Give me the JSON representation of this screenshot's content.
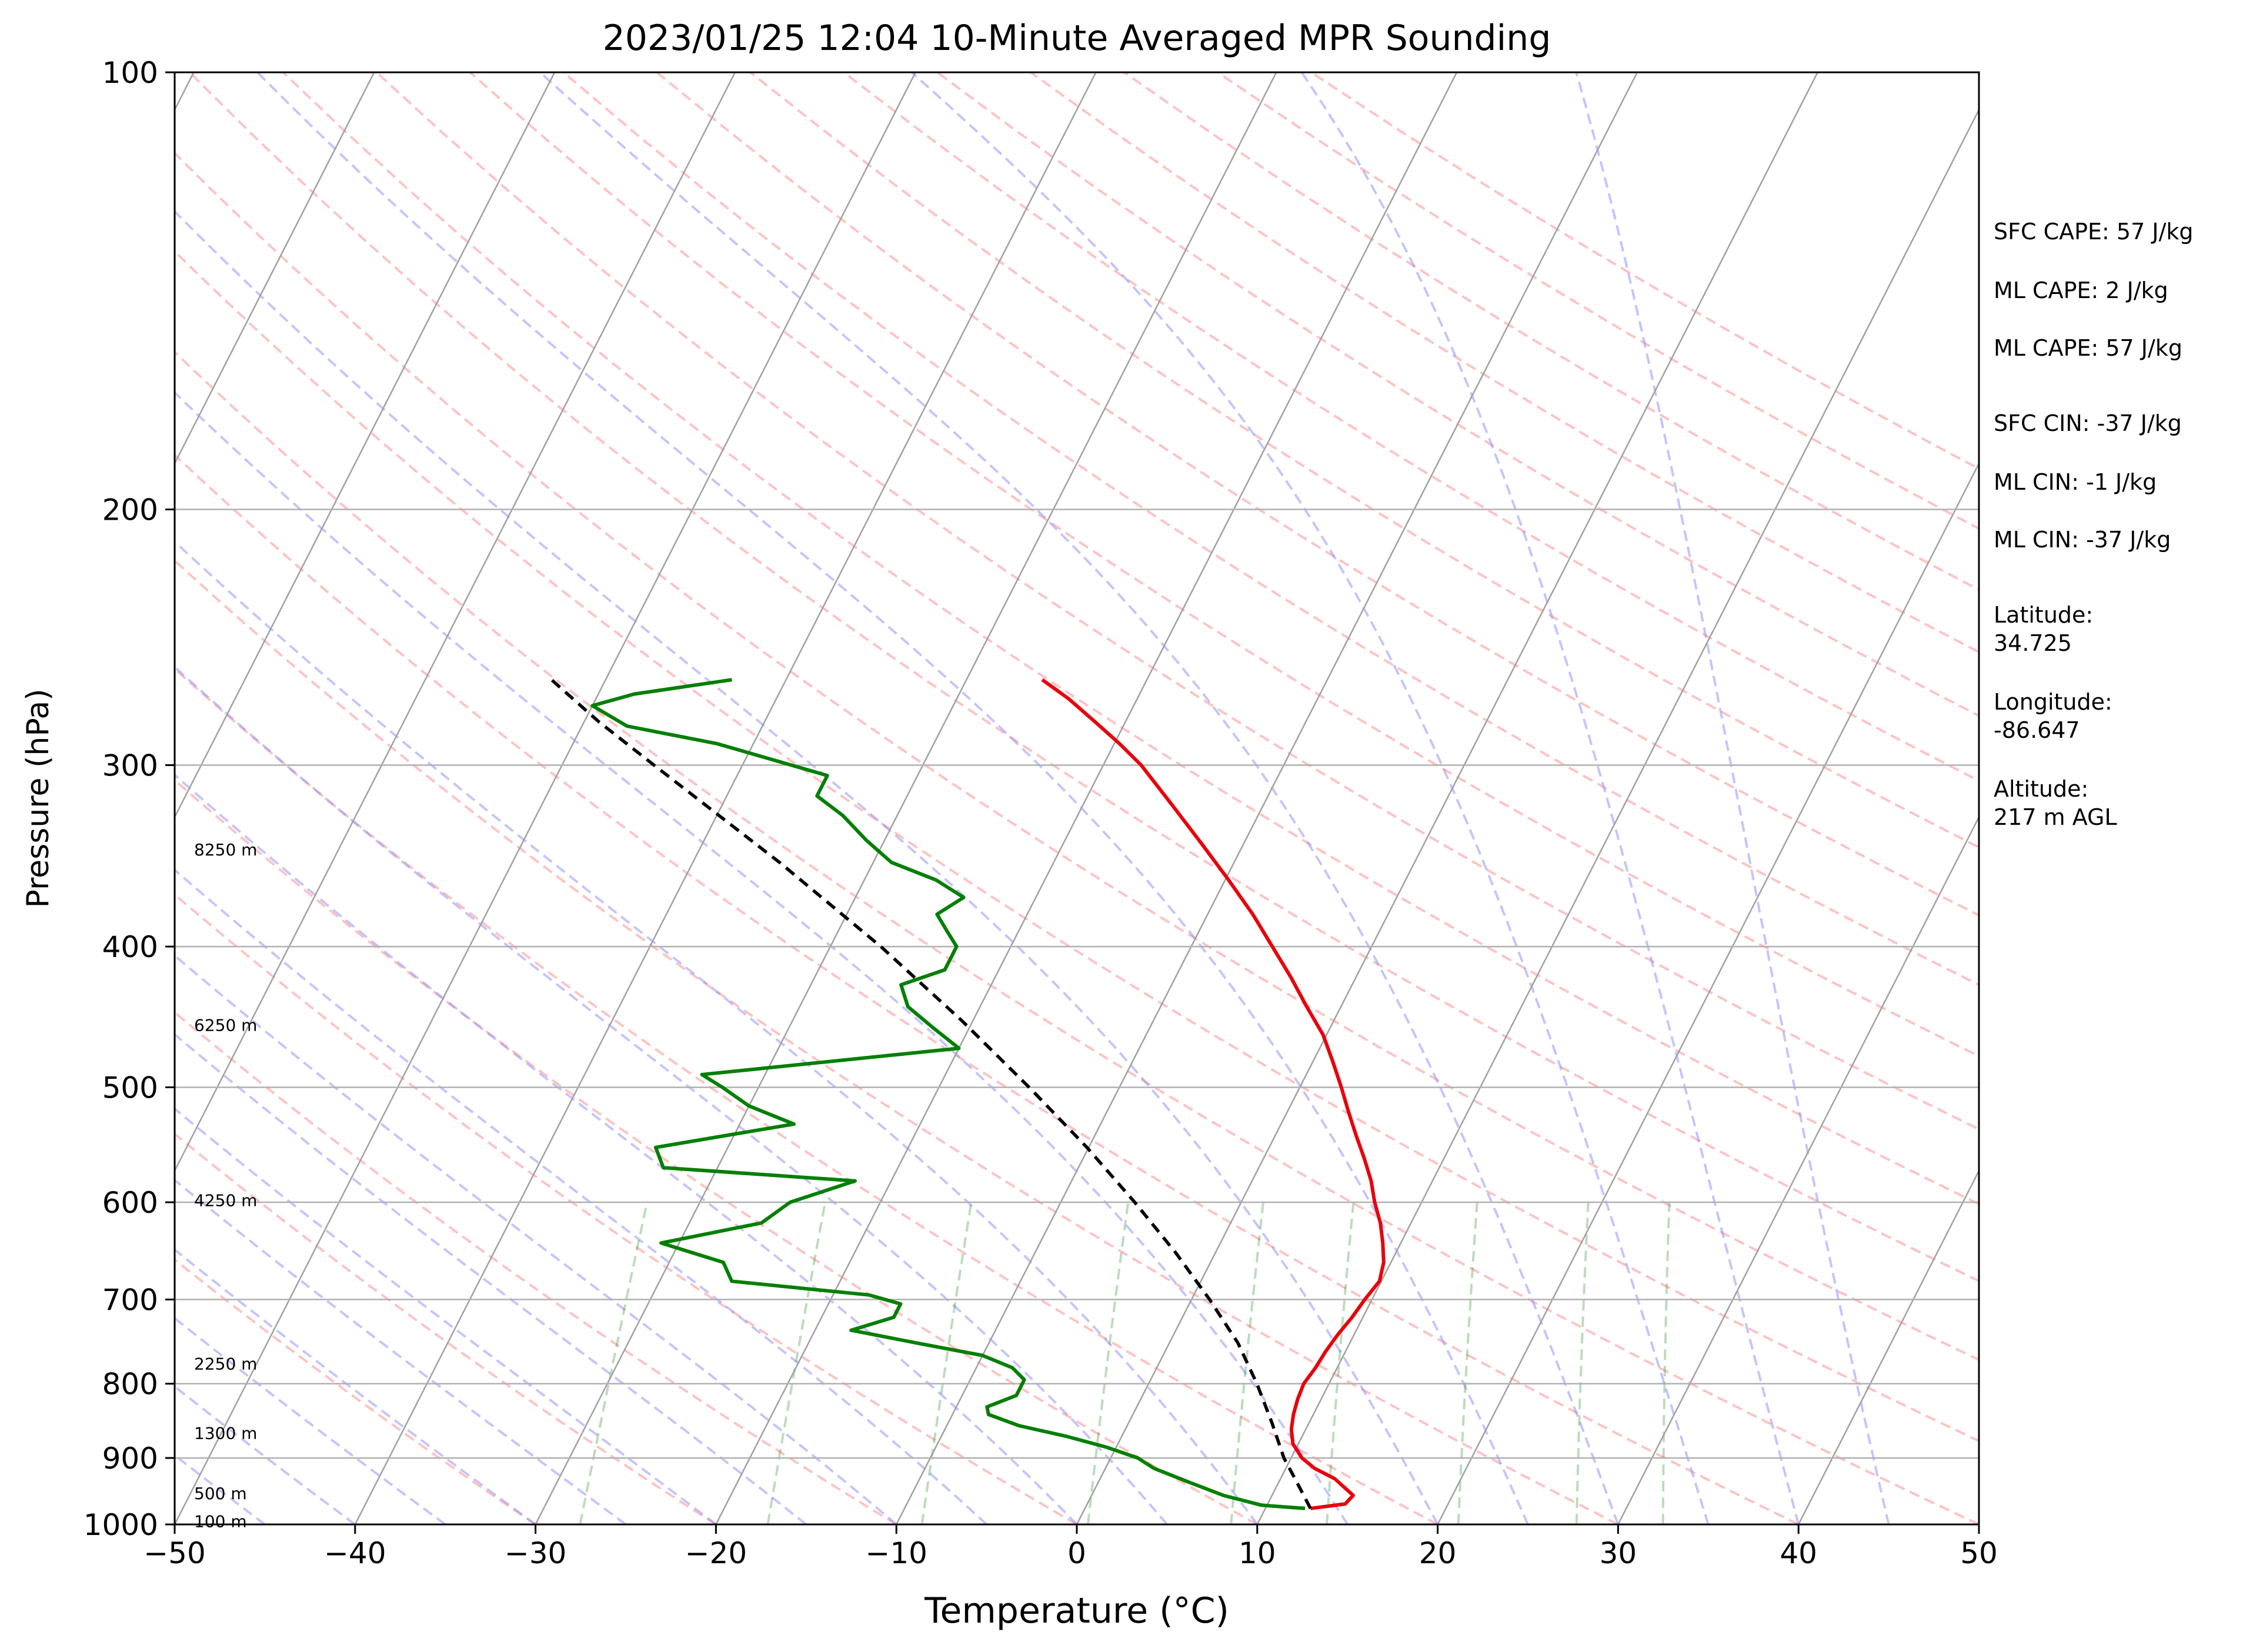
{
  "chart_data": {
    "type": "line",
    "title": "2023/01/25 12:04 10-Minute Averaged MPR Sounding",
    "xlabel": "Temperature (°C)",
    "ylabel": "Pressure (hPa)",
    "xlim": [
      -50,
      50
    ],
    "ylim": [
      1000,
      100
    ],
    "y_scale": "log",
    "skew": "skew-T log-P",
    "x_ticks": [
      "−50",
      "−40",
      "−30",
      "−20",
      "−10",
      "0",
      "10",
      "20",
      "30",
      "40",
      "50"
    ],
    "y_ticks": [
      "1000",
      "900",
      "800",
      "700",
      "600",
      "500",
      "400",
      "300",
      "200",
      "100"
    ],
    "grid": true,
    "height_labels": [
      {
        "label": "100 m",
        "pressure": 995
      },
      {
        "label": "500 m",
        "pressure": 952
      },
      {
        "label": "1300 m",
        "pressure": 865
      },
      {
        "label": "2250 m",
        "pressure": 775
      },
      {
        "label": "4250 m",
        "pressure": 598
      },
      {
        "label": "6250 m",
        "pressure": 453
      },
      {
        "label": "8250 m",
        "pressure": 343
      }
    ],
    "series": [
      {
        "key": "temperature",
        "color": "#e8000b",
        "points": [
          {
            "p": 975,
            "t": 12.5
          },
          {
            "p": 968,
            "t": 14.3
          },
          {
            "p": 955,
            "t": 14.5
          },
          {
            "p": 930,
            "t": 13.0
          },
          {
            "p": 915,
            "t": 11.6
          },
          {
            "p": 900,
            "t": 10.6
          },
          {
            "p": 880,
            "t": 9.7
          },
          {
            "p": 860,
            "t": 9.2
          },
          {
            "p": 840,
            "t": 8.9
          },
          {
            "p": 820,
            "t": 8.7
          },
          {
            "p": 800,
            "t": 8.6
          },
          {
            "p": 780,
            "t": 8.8
          },
          {
            "p": 760,
            "t": 8.9
          },
          {
            "p": 740,
            "t": 9.1
          },
          {
            "p": 720,
            "t": 9.4
          },
          {
            "p": 700,
            "t": 9.6
          },
          {
            "p": 680,
            "t": 9.9
          },
          {
            "p": 660,
            "t": 9.6
          },
          {
            "p": 640,
            "t": 9.0
          },
          {
            "p": 620,
            "t": 8.3
          },
          {
            "p": 600,
            "t": 7.4
          },
          {
            "p": 580,
            "t": 6.6
          },
          {
            "p": 560,
            "t": 5.6
          },
          {
            "p": 540,
            "t": 4.5
          },
          {
            "p": 520,
            "t": 3.4
          },
          {
            "p": 500,
            "t": 2.3
          },
          {
            "p": 480,
            "t": 1.1
          },
          {
            "p": 460,
            "t": -0.2
          },
          {
            "p": 440,
            "t": -1.9
          },
          {
            "p": 420,
            "t": -3.6
          },
          {
            "p": 400,
            "t": -5.5
          },
          {
            "p": 380,
            "t": -7.5
          },
          {
            "p": 360,
            "t": -9.8
          },
          {
            "p": 340,
            "t": -12.3
          },
          {
            "p": 320,
            "t": -15.0
          },
          {
            "p": 300,
            "t": -17.9
          },
          {
            "p": 290,
            "t": -19.7
          },
          {
            "p": 280,
            "t": -21.7
          },
          {
            "p": 270,
            "t": -23.8
          },
          {
            "p": 262,
            "t": -25.8
          }
        ]
      },
      {
        "key": "dewpoint",
        "color": "#007f00",
        "points": [
          {
            "p": 975,
            "t": 12.2
          },
          {
            "p": 970,
            "t": 9.7
          },
          {
            "p": 955,
            "t": 7.3
          },
          {
            "p": 935,
            "t": 5.0
          },
          {
            "p": 915,
            "t": 2.7
          },
          {
            "p": 900,
            "t": 1.5
          },
          {
            "p": 885,
            "t": -0.5
          },
          {
            "p": 870,
            "t": -3.0
          },
          {
            "p": 855,
            "t": -6.0
          },
          {
            "p": 840,
            "t": -8.0
          },
          {
            "p": 830,
            "t": -8.3
          },
          {
            "p": 815,
            "t": -7.0
          },
          {
            "p": 795,
            "t": -7.0
          },
          {
            "p": 780,
            "t": -8.0
          },
          {
            "p": 765,
            "t": -10.0
          },
          {
            "p": 750,
            "t": -14.0
          },
          {
            "p": 735,
            "t": -18.0
          },
          {
            "p": 720,
            "t": -16.0
          },
          {
            "p": 705,
            "t": -16.0
          },
          {
            "p": 695,
            "t": -18.0
          },
          {
            "p": 680,
            "t": -26.0
          },
          {
            "p": 660,
            "t": -27.0
          },
          {
            "p": 640,
            "t": -31.0
          },
          {
            "p": 620,
            "t": -26.0
          },
          {
            "p": 600,
            "t": -25.0
          },
          {
            "p": 580,
            "t": -22.0
          },
          {
            "p": 568,
            "t": -33.0
          },
          {
            "p": 550,
            "t": -34.0
          },
          {
            "p": 530,
            "t": -27.0
          },
          {
            "p": 515,
            "t": -30.0
          },
          {
            "p": 500,
            "t": -32.0
          },
          {
            "p": 490,
            "t": -33.5
          },
          {
            "p": 470,
            "t": -20.0
          },
          {
            "p": 455,
            "t": -22.0
          },
          {
            "p": 440,
            "t": -24.0
          },
          {
            "p": 425,
            "t": -25.0
          },
          {
            "p": 415,
            "t": -23.0
          },
          {
            "p": 400,
            "t": -23.0
          },
          {
            "p": 390,
            "t": -24.0
          },
          {
            "p": 380,
            "t": -25.0
          },
          {
            "p": 370,
            "t": -24.0
          },
          {
            "p": 360,
            "t": -26.0
          },
          {
            "p": 350,
            "t": -29.0
          },
          {
            "p": 338,
            "t": -31.0
          },
          {
            "p": 325,
            "t": -33.0
          },
          {
            "p": 315,
            "t": -35.0
          },
          {
            "p": 305,
            "t": -35.0
          },
          {
            "p": 290,
            "t": -42.0
          },
          {
            "p": 282,
            "t": -47.5
          },
          {
            "p": 273,
            "t": -50.0
          },
          {
            "p": 268,
            "t": -48.0
          },
          {
            "p": 262,
            "t": -43.0
          }
        ]
      },
      {
        "key": "parcel",
        "color": "#000000",
        "dashed": true,
        "points": [
          {
            "p": 975,
            "t": 12.5
          },
          {
            "p": 930,
            "t": 10.8
          },
          {
            "p": 900,
            "t": 9.6
          },
          {
            "p": 850,
            "t": 7.9
          },
          {
            "p": 800,
            "t": 6.0
          },
          {
            "p": 750,
            "t": 3.8
          },
          {
            "p": 700,
            "t": 1.0
          },
          {
            "p": 650,
            "t": -2.2
          },
          {
            "p": 600,
            "t": -5.9
          },
          {
            "p": 550,
            "t": -10.1
          },
          {
            "p": 500,
            "t": -15.0
          },
          {
            "p": 450,
            "t": -20.6
          },
          {
            "p": 400,
            "t": -27.2
          },
          {
            "p": 350,
            "t": -35.2
          },
          {
            "p": 300,
            "t": -44.9
          },
          {
            "p": 280,
            "t": -49.2
          },
          {
            "p": 262,
            "t": -53.0
          }
        ]
      }
    ]
  },
  "stats": {
    "sfc_cape": "SFC CAPE: 57 J/kg",
    "ml_cape_1": "ML CAPE: 2 J/kg",
    "ml_cape_2": "ML CAPE: 57 J/kg",
    "sfc_cin": "SFC CIN: -37 J/kg",
    "ml_cin_1": "ML CIN: -1 J/kg",
    "ml_cin_2": "ML CIN: -37 J/kg",
    "latitude_label": "Latitude:",
    "latitude_value": "34.725",
    "longitude_label": "Longitude:",
    "longitude_value": "-86.647",
    "altitude_label": "Altitude:",
    "altitude_value": "217 m AGL"
  }
}
